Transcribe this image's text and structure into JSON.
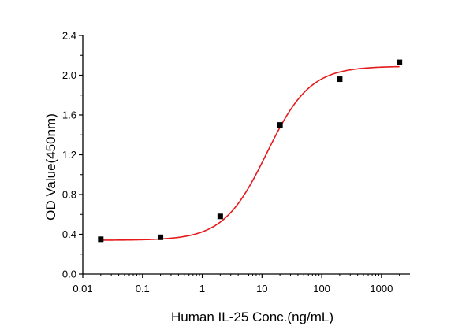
{
  "chart_data": {
    "type": "scatter",
    "title": "",
    "xlabel": "Human IL-25 Conc.(ng/mL)",
    "ylabel": "OD Value(450nm)",
    "x_scale": "log",
    "xlim": [
      0.01,
      3000
    ],
    "ylim": [
      0.0,
      2.4
    ],
    "x_ticks": [
      0.01,
      0.1,
      1,
      10,
      100,
      1000
    ],
    "x_tick_labels": [
      "0.01",
      "0.1",
      "1",
      "10",
      "100",
      "1000"
    ],
    "y_ticks": [
      0.0,
      0.4,
      0.8,
      1.2,
      1.6,
      2.0,
      2.4
    ],
    "y_tick_labels": [
      "0.0",
      "0.4",
      "0.8",
      "1.2",
      "1.6",
      "2.0",
      "2.4"
    ],
    "grid": false,
    "points": {
      "x": [
        0.02,
        0.2,
        2,
        20,
        200,
        2000
      ],
      "y": [
        0.35,
        0.37,
        0.58,
        1.5,
        1.96,
        2.13
      ],
      "marker_color": "#000000"
    },
    "fit_curve": {
      "model": "4PL",
      "bottom": 0.34,
      "top": 2.09,
      "ec50": 12,
      "hill": 1.2,
      "color": "#e41a1c"
    }
  }
}
